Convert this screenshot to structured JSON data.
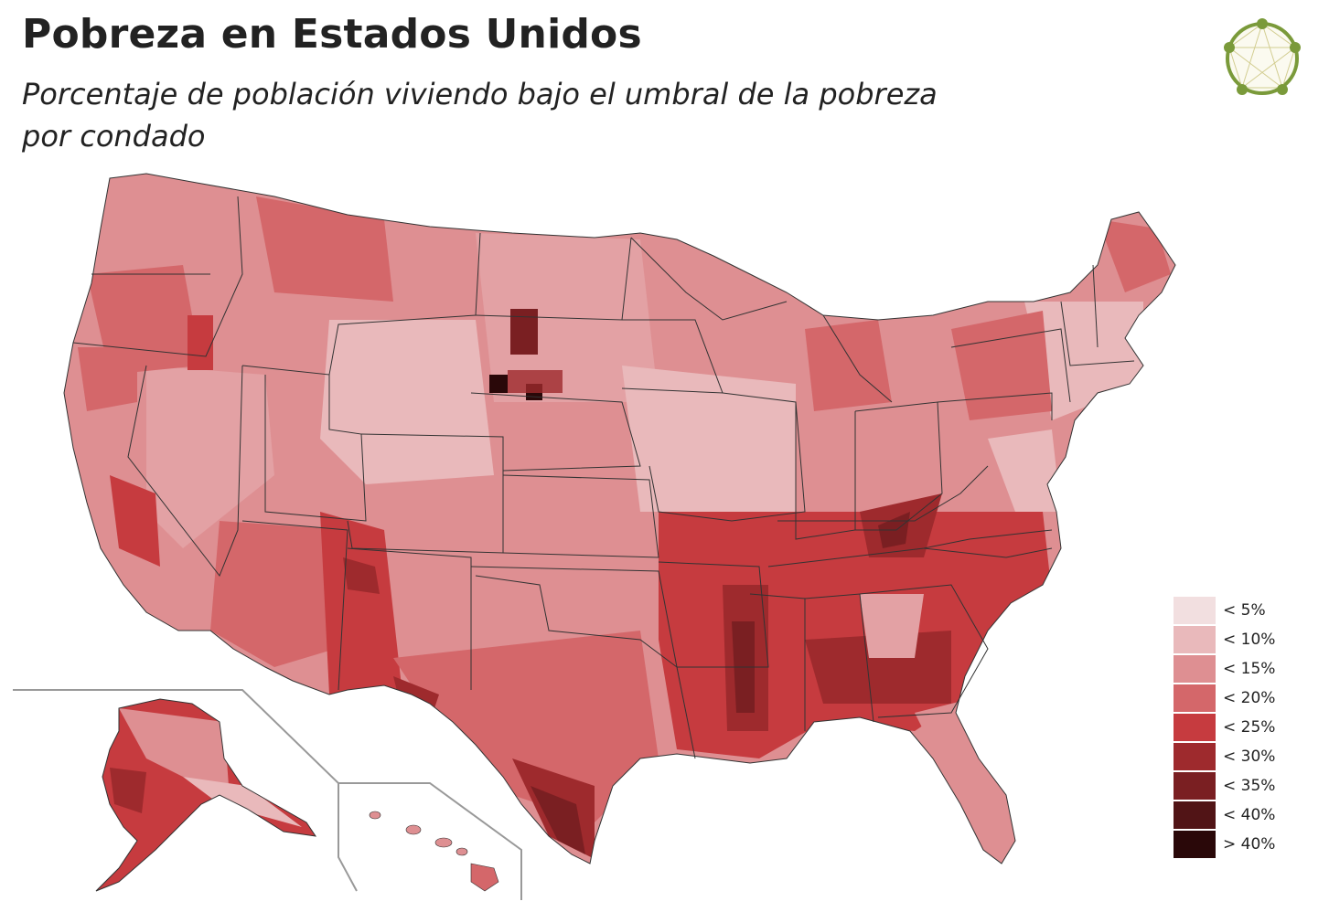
{
  "title": "Pobreza en Estados Unidos",
  "subtitle_line1": "Porcentaje de población viviendo bajo el umbral de la pobreza",
  "subtitle_line2": "por condado",
  "legend": [
    {
      "label": "< 5%",
      "color": "#f2dfe0"
    },
    {
      "label": "< 10%",
      "color": "#e9b9bb"
    },
    {
      "label": "< 15%",
      "color": "#de8f92"
    },
    {
      "label": "< 20%",
      "color": "#d4676a"
    },
    {
      "label": "< 25%",
      "color": "#c63b3f"
    },
    {
      "label": "< 30%",
      "color": "#9e2a2d"
    },
    {
      "label": "< 35%",
      "color": "#7a1f22"
    },
    {
      "label": "< 40%",
      "color": "#511416"
    },
    {
      "label": "> 40%",
      "color": "#2a0809"
    }
  ],
  "colors": {
    "state_border": "#333333",
    "inset_frame": "#999999",
    "logo_ring": "#7a9a3a"
  },
  "icons": [
    "logo-icon"
  ]
}
